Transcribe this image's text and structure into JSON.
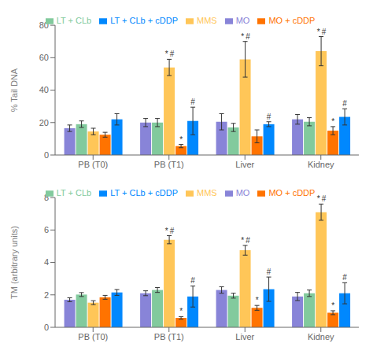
{
  "chart_data": [
    {
      "type": "bar",
      "ylabel": "% Tail DNA",
      "categories": [
        "PB (T0)",
        "PB (T1)",
        "Liver",
        "Kidney"
      ],
      "series": [
        {
          "name": "MO",
          "color": "#8884d8",
          "values": [
            16.5,
            20.0,
            20.5,
            22.0
          ],
          "errors": [
            2.0,
            2.5,
            5.0,
            3.0
          ]
        },
        {
          "name": "LT + CLb",
          "color": "#82ca9d",
          "values": [
            19.0,
            20.0,
            17.0,
            20.5
          ],
          "errors": [
            2.0,
            2.5,
            2.5,
            2.5
          ]
        },
        {
          "name": "MMS",
          "color": "#ffc658",
          "values": [
            14.5,
            54.0,
            59.0,
            64.0
          ],
          "errors": [
            2.0,
            5.0,
            11.0,
            9.0
          ]
        },
        {
          "name": "MO + cDDP",
          "color": "#ff7300",
          "values": [
            12.5,
            5.5,
            11.5,
            15.0
          ],
          "errors": [
            1.5,
            1.0,
            4.0,
            2.5
          ]
        },
        {
          "name": "LT + CLb + cDDP",
          "color": "#0088fe",
          "values": [
            22.0,
            21.0,
            19.0,
            23.5
          ],
          "errors": [
            3.5,
            8.5,
            1.5,
            5.0
          ]
        }
      ],
      "ylim": [
        0,
        80
      ],
      "yticks": [
        0,
        20,
        40,
        60,
        80
      ],
      "grid": false,
      "legend": "top",
      "annotations": [
        {
          "category": "PB (T1)",
          "series": "MMS",
          "text": "*"
        },
        {
          "category": "PB (T1)",
          "series": "MMS",
          "text": "#"
        },
        {
          "category": "PB (T1)",
          "series": "MO + cDDP",
          "text": "*"
        },
        {
          "category": "PB (T1)",
          "series": "LT + CLb + cDDP",
          "text": "#"
        },
        {
          "category": "Liver",
          "series": "MMS",
          "text": "*"
        },
        {
          "category": "Liver",
          "series": "MMS",
          "text": "#"
        },
        {
          "category": "Liver",
          "series": "LT + CLb + cDDP",
          "text": "#"
        },
        {
          "category": "Kidney",
          "series": "MMS",
          "text": "*"
        },
        {
          "category": "Kidney",
          "series": "MMS",
          "text": "#"
        },
        {
          "category": "Kidney",
          "series": "MO + cDDP",
          "text": "*"
        },
        {
          "category": "Kidney",
          "series": "LT + CLb + cDDP",
          "text": "#"
        }
      ]
    },
    {
      "type": "bar",
      "ylabel": "TM (arbitrary units)",
      "categories": [
        "PB (T0)",
        "PB (T1)",
        "Liver",
        "Kidney"
      ],
      "series": [
        {
          "name": "MO",
          "color": "#8884d8",
          "values": [
            1.7,
            2.1,
            2.3,
            1.9
          ],
          "errors": [
            0.12,
            0.15,
            0.2,
            0.25
          ]
        },
        {
          "name": "LT + CLb",
          "color": "#82ca9d",
          "values": [
            2.02,
            2.3,
            1.95,
            2.1
          ],
          "errors": [
            0.12,
            0.15,
            0.15,
            0.2
          ]
        },
        {
          "name": "MMS",
          "color": "#ffc658",
          "values": [
            1.52,
            5.4,
            4.75,
            7.1
          ],
          "errors": [
            0.12,
            0.25,
            0.3,
            0.5
          ]
        },
        {
          "name": "MO + cDDP",
          "color": "#ff7300",
          "values": [
            1.85,
            0.58,
            1.2,
            0.9
          ],
          "errors": [
            0.12,
            0.08,
            0.15,
            0.12
          ]
        },
        {
          "name": "LT + CLb + cDDP",
          "color": "#0088fe",
          "values": [
            2.15,
            1.9,
            2.35,
            2.1
          ],
          "errors": [
            0.18,
            0.65,
            0.75,
            0.65
          ]
        }
      ],
      "ylim": [
        0,
        8
      ],
      "yticks": [
        0,
        2,
        4,
        6,
        8
      ],
      "grid": false,
      "legend": "top",
      "annotations": [
        {
          "category": "PB (T1)",
          "series": "MMS",
          "text": "*"
        },
        {
          "category": "PB (T1)",
          "series": "MMS",
          "text": "#"
        },
        {
          "category": "PB (T1)",
          "series": "MO + cDDP",
          "text": "*"
        },
        {
          "category": "PB (T1)",
          "series": "LT + CLb + cDDP",
          "text": "#"
        },
        {
          "category": "Liver",
          "series": "MMS",
          "text": "*"
        },
        {
          "category": "Liver",
          "series": "MMS",
          "text": "#"
        },
        {
          "category": "Liver",
          "series": "MO + cDDP",
          "text": "*"
        },
        {
          "category": "Liver",
          "series": "LT + CLb + cDDP",
          "text": "#"
        },
        {
          "category": "Kidney",
          "series": "MMS",
          "text": "*"
        },
        {
          "category": "Kidney",
          "series": "MMS",
          "text": "#"
        },
        {
          "category": "Kidney",
          "series": "MO + cDDP",
          "text": "*"
        },
        {
          "category": "Kidney",
          "series": "LT + CLb + cDDP",
          "text": "#"
        }
      ]
    }
  ]
}
